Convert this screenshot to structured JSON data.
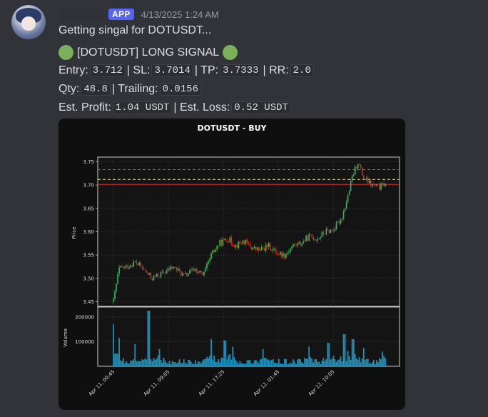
{
  "message": {
    "badge": "APP",
    "timestamp": "4/13/2025 1:24 AM",
    "line1": "Getting singal for DOTUSDT...",
    "signal_title": "[DOTUSDT] LONG SIGNAL",
    "entry_label": "Entry:",
    "entry_value": "3.712",
    "sl_label": "| SL:",
    "sl_value": "3.7014",
    "tp_label": "| TP:",
    "tp_value": "3.7333",
    "rr_label": "| RR:",
    "rr_value": "2.0",
    "qty_label": "Qty:",
    "qty_value": "48.8",
    "trailing_label": "| Trailing:",
    "trailing_value": "0.0156",
    "profit_label": "Est. Profit:",
    "profit_value": "1.04 USDT",
    "loss_label": "| Est. Loss:",
    "loss_value": "0.52 USDT"
  },
  "colors": {
    "accent": "#5865f2",
    "signal_dot": "#78b159",
    "up_candle": "#22c55e",
    "down_candle": "#dc2626",
    "volume": "#1f8fb8",
    "tp_line": "#16a34a",
    "entry_line": "#eab308",
    "sl_line": "#dc2626"
  },
  "chart_data": {
    "type": "candlestick",
    "title": "DOTUSDT - BUY",
    "price_axis": {
      "label": "Price",
      "range": [
        3.44,
        3.76
      ],
      "ticks": [
        "3.75",
        "3.70",
        "3.65",
        "3.60",
        "3.55",
        "3.50",
        "3.45"
      ]
    },
    "volume_axis": {
      "label": "Volume",
      "range": [
        0,
        240000
      ],
      "ticks": [
        "200000",
        "100000"
      ]
    },
    "time_ticks": [
      "Apr 11, 00:45",
      "Apr 11, 09:05",
      "Apr 11, 17:25",
      "Apr 12, 01:45",
      "Apr 12, 10:05"
    ],
    "levels": {
      "tp": 3.7333,
      "entry": 3.712,
      "sl": 3.7014
    },
    "price_path": [
      [
        0,
        3.45
      ],
      [
        0.02,
        3.52
      ],
      [
        0.05,
        3.525
      ],
      [
        0.08,
        3.535
      ],
      [
        0.11,
        3.52
      ],
      [
        0.14,
        3.5
      ],
      [
        0.18,
        3.51
      ],
      [
        0.22,
        3.525
      ],
      [
        0.26,
        3.505
      ],
      [
        0.3,
        3.52
      ],
      [
        0.33,
        3.505
      ],
      [
        0.36,
        3.55
      ],
      [
        0.39,
        3.575
      ],
      [
        0.42,
        3.585
      ],
      [
        0.45,
        3.57
      ],
      [
        0.48,
        3.58
      ],
      [
        0.51,
        3.565
      ],
      [
        0.54,
        3.56
      ],
      [
        0.57,
        3.57
      ],
      [
        0.6,
        3.555
      ],
      [
        0.63,
        3.55
      ],
      [
        0.66,
        3.57
      ],
      [
        0.69,
        3.575
      ],
      [
        0.72,
        3.59
      ],
      [
        0.75,
        3.585
      ],
      [
        0.78,
        3.6
      ],
      [
        0.81,
        3.605
      ],
      [
        0.84,
        3.63
      ],
      [
        0.86,
        3.67
      ],
      [
        0.88,
        3.72
      ],
      [
        0.9,
        3.75
      ],
      [
        0.92,
        3.715
      ],
      [
        0.95,
        3.7
      ],
      [
        0.98,
        3.695
      ],
      [
        1.0,
        3.705
      ]
    ],
    "volume_peaks": [
      [
        0.0,
        170000
      ],
      [
        0.02,
        115000
      ],
      [
        0.08,
        90000
      ],
      [
        0.13,
        225000
      ],
      [
        0.17,
        70000
      ],
      [
        0.36,
        110000
      ],
      [
        0.41,
        105000
      ],
      [
        0.44,
        80000
      ],
      [
        0.55,
        70000
      ],
      [
        0.72,
        80000
      ],
      [
        0.79,
        95000
      ],
      [
        0.85,
        130000
      ],
      [
        0.88,
        110000
      ],
      [
        0.92,
        75000
      ],
      [
        0.99,
        60000
      ]
    ]
  }
}
